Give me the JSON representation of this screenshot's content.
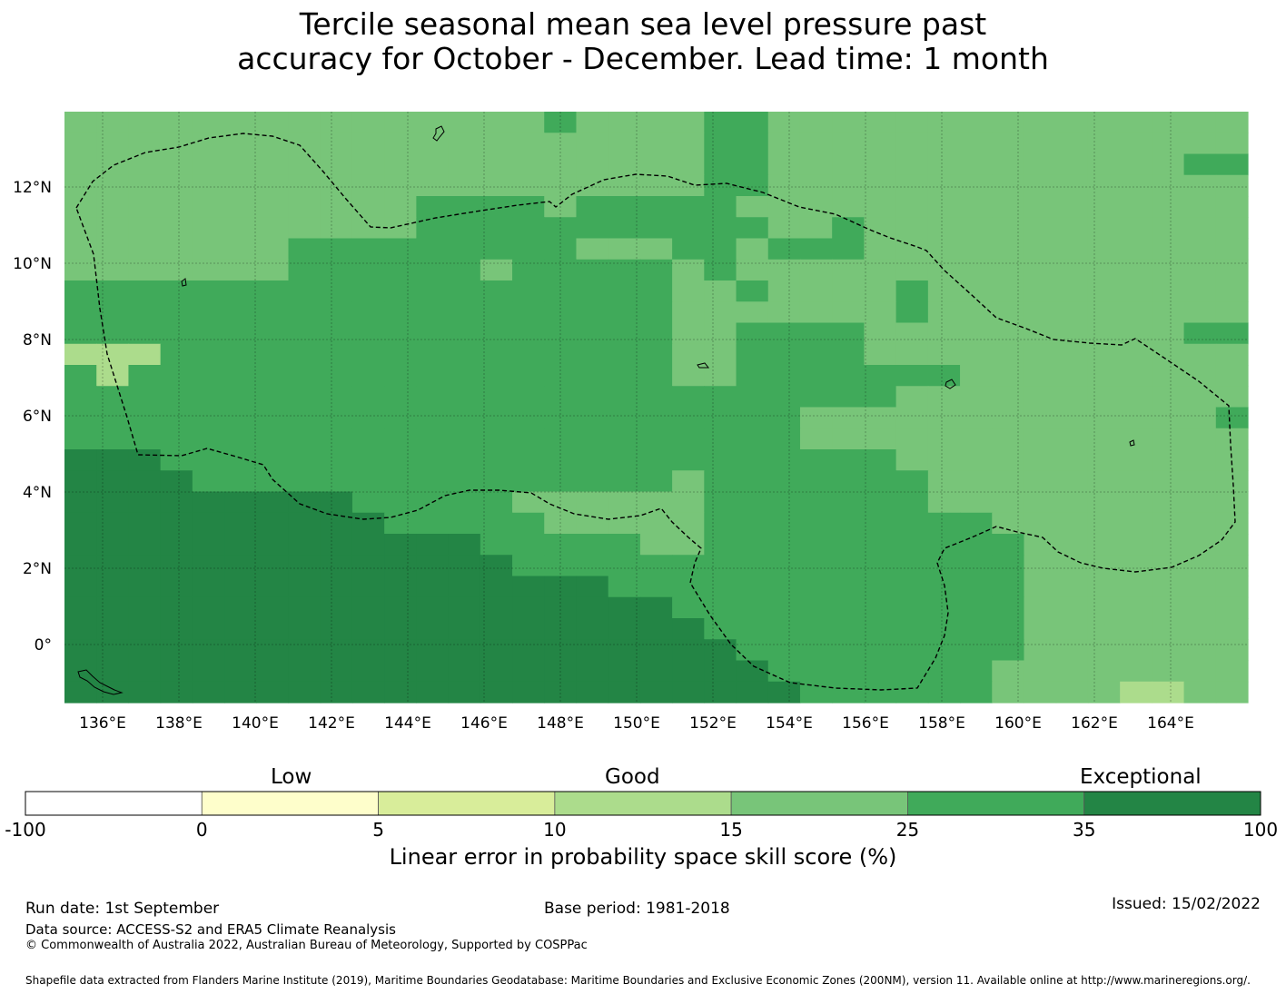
{
  "title_line1": "Tercile seasonal mean sea level pressure past",
  "title_line2": "accuracy for October - December. Lead time: 1 month",
  "colors": {
    "c1": "#ffffff",
    "c2": "#fefecb",
    "c3": "#d8ed9a",
    "c4": "#acdc8c",
    "c5": "#78c579",
    "c6": "#40aa5a",
    "c7": "#238545"
  },
  "map": {
    "lon_ticks": [
      "136°E",
      "138°E",
      "140°E",
      "142°E",
      "144°E",
      "146°E",
      "148°E",
      "150°E",
      "152°E",
      "154°E",
      "156°E",
      "158°E",
      "160°E",
      "162°E",
      "164°E"
    ],
    "lat_ticks": [
      "12°N",
      "10°N",
      "8°N",
      "6°N",
      "4°N",
      "2°N",
      "0°"
    ]
  },
  "colorbar": {
    "categories": [
      "Low",
      "Good",
      "Exceptional"
    ],
    "ticks": [
      "-100",
      "0",
      "5",
      "10",
      "15",
      "25",
      "35",
      "100"
    ],
    "label": "Linear error in probability space skill score (%)"
  },
  "footer": {
    "run_date": "Run date: 1st September",
    "base_period": "Base period: 1981-2018",
    "issued": "Issued: 15/02/2022",
    "data_source": "Data source: ACCESS-S2 and ERA5 Climate Reanalysis",
    "copyright": "© Commonwealth of Australia 2022, Australian Bureau of Meteorology, Supported by COSPPac",
    "shapefile": "Shapefile data extracted from Flanders Marine Institute (2019), Maritime Boundaries Geodatabase: Maritime Boundaries and Exclusive Economic Zones (200NM), version 11. Available online at http://www.marineregions.org/."
  }
}
